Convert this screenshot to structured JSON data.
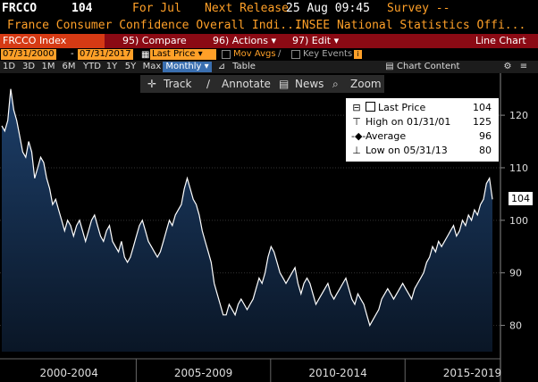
{
  "header": {
    "ticker": "FRCCO",
    "last_value": "104",
    "period": "For Jul",
    "next_release_label": "Next Release",
    "next_release_value": "25 Aug 09:45",
    "survey_label": "Survey --"
  },
  "subheader": {
    "description": "France Consumer Confidence Overall Indi...",
    "source": "INSEE National Statistics Offi..."
  },
  "menu": {
    "security": "FRCCO Index",
    "compare": "95) Compare",
    "actions": "96) Actions ▾",
    "edit": "97) Edit ▾",
    "chart_type": "Line Chart"
  },
  "controls": {
    "start_date": "07/31/2000",
    "end_date": "07/31/2017",
    "field": "Last Price",
    "mov_avgs": "Mov Avgs",
    "key_events": "Key Events"
  },
  "periods": {
    "buttons": [
      "1D",
      "3D",
      "1M",
      "6M",
      "YTD",
      "1Y",
      "5Y",
      "Max"
    ],
    "frequency": "Monthly ▾",
    "table": "Table",
    "chart_content": "Chart Content"
  },
  "toolbar": {
    "track": "Track",
    "annotate": "Annotate",
    "news": "News",
    "zoom": "Zoom"
  },
  "legend": {
    "last_price_label": "Last Price",
    "last_price_value": "104",
    "high_label": "High on 01/31/01",
    "high_value": "125",
    "average_label": "Average",
    "average_value": "96",
    "low_label": "Low on 05/31/13",
    "low_value": "80"
  },
  "colors": {
    "header_bg": "#8b0a14",
    "ticker_bar_orange": "#ffa028",
    "line": "#ffffff",
    "area_top": "#1d3f6a",
    "area_bottom": "#0a1626"
  },
  "chart_data": {
    "type": "area",
    "y_ticks": [
      80,
      90,
      100,
      110,
      120
    ],
    "ylim": [
      75,
      128
    ],
    "period_labels": [
      "2000-2004",
      "2005-2009",
      "2010-2014",
      "2015-2019"
    ],
    "current_value_tag": "104",
    "series": [
      {
        "values": [
          118,
          117,
          119,
          125,
          121,
          119,
          116,
          113,
          112,
          115,
          113,
          108,
          110,
          112,
          111,
          108,
          106,
          103,
          104,
          102,
          100,
          98,
          100,
          99,
          97,
          99,
          100,
          98,
          96,
          98,
          100,
          101,
          99,
          97,
          96,
          98,
          99,
          96,
          95,
          94,
          96,
          93,
          92,
          93,
          95,
          97,
          99,
          100,
          98,
          96,
          95,
          94,
          93,
          94,
          96,
          98,
          100,
          99,
          101,
          102,
          103,
          106,
          108,
          106,
          104,
          103,
          101,
          98,
          96,
          94,
          92,
          88,
          86,
          84,
          82,
          82,
          84,
          83,
          82,
          84,
          85,
          84,
          83,
          84,
          85,
          87,
          89,
          88,
          90,
          93,
          95,
          94,
          92,
          90,
          89,
          88,
          89,
          90,
          91,
          88,
          86,
          88,
          89,
          88,
          86,
          84,
          85,
          86,
          87,
          88,
          86,
          85,
          86,
          87,
          88,
          89,
          87,
          85,
          84,
          86,
          85,
          84,
          82,
          80,
          81,
          82,
          83,
          85,
          86,
          87,
          86,
          85,
          86,
          87,
          88,
          87,
          86,
          85,
          87,
          88,
          89,
          90,
          92,
          93,
          95,
          94,
          96,
          95,
          96,
          97,
          98,
          99,
          97,
          98,
          100,
          99,
          101,
          100,
          102,
          101,
          103,
          104,
          107,
          108,
          104
        ]
      }
    ]
  }
}
